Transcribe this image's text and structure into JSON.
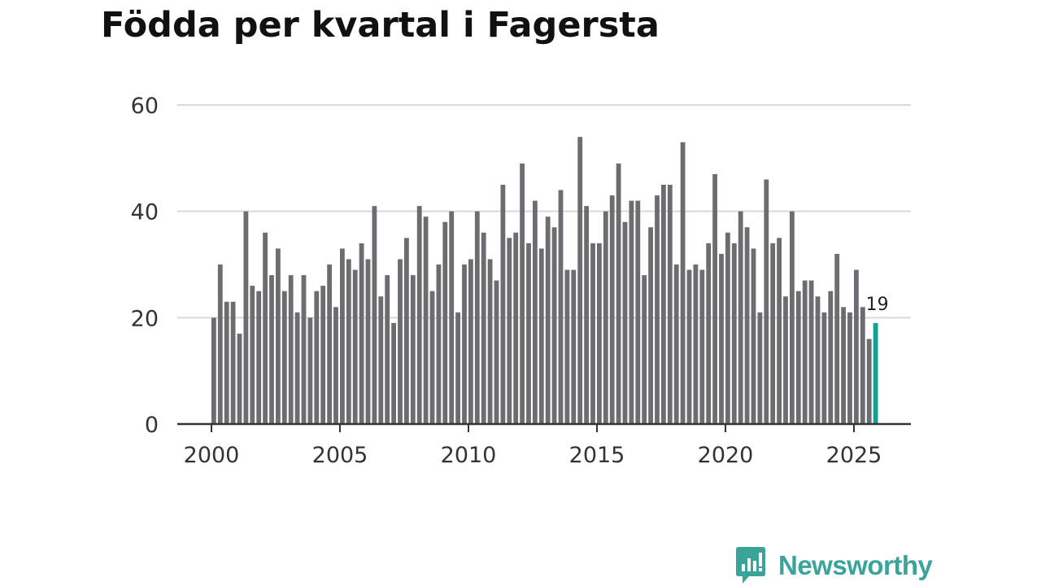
{
  "title": "Födda per kvartal i Fagersta",
  "brand": {
    "name": "Newsworthy",
    "icon": "newsworthy-logo-icon",
    "color": "#3aa39a"
  },
  "chart_data": {
    "type": "bar",
    "title": "Födda per kvartal i Fagersta",
    "xlabel": "",
    "ylabel": "",
    "ylim": [
      0,
      60
    ],
    "yticks": [
      0,
      20,
      40,
      60
    ],
    "xticks": [
      "2000",
      "2005",
      "2010",
      "2015",
      "2020",
      "2025"
    ],
    "grid": true,
    "bar_color": "#6d6c71",
    "highlight_color": "#159e94",
    "annotation": {
      "label": "19",
      "target": "last"
    },
    "start_year": 2000,
    "bars_per_year": 4,
    "values": [
      20,
      30,
      23,
      23,
      17,
      40,
      26,
      25,
      36,
      28,
      33,
      25,
      28,
      21,
      28,
      20,
      25,
      26,
      30,
      22,
      33,
      31,
      29,
      34,
      31,
      41,
      24,
      28,
      19,
      31,
      35,
      28,
      41,
      39,
      25,
      30,
      38,
      40,
      21,
      30,
      31,
      40,
      36,
      31,
      27,
      45,
      35,
      36,
      49,
      34,
      42,
      33,
      39,
      37,
      44,
      29,
      29,
      54,
      41,
      34,
      34,
      40,
      43,
      49,
      38,
      42,
      42,
      28,
      37,
      43,
      45,
      45,
      30,
      53,
      29,
      30,
      29,
      34,
      47,
      32,
      36,
      34,
      40,
      37,
      33,
      21,
      46,
      34,
      35,
      24,
      40,
      25,
      27,
      27,
      24,
      21,
      25,
      32,
      22,
      21,
      29,
      22,
      16,
      19
    ]
  }
}
